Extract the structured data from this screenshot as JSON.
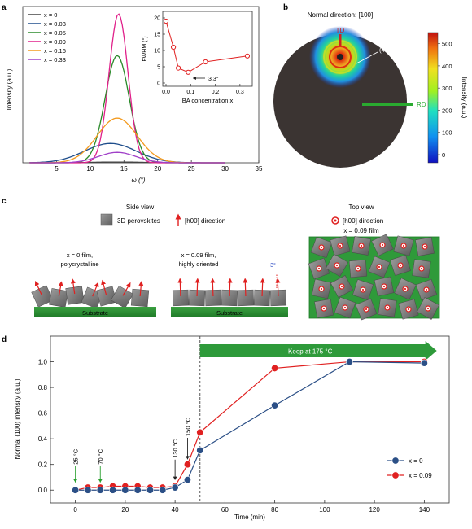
{
  "panel_labels": {
    "a": "a",
    "b": "b",
    "c": "c",
    "d": "d"
  },
  "panel_a": {
    "ylabel": "Intensity (a.u.)",
    "xlabel": "ω (°)",
    "xticks": [
      "5",
      "10",
      "15",
      "20",
      "25",
      "30",
      "35"
    ],
    "legend": [
      {
        "label": "x = 0",
        "color": "#444444"
      },
      {
        "label": "x = 0.03",
        "color": "#1f4e8c"
      },
      {
        "label": "x = 0.05",
        "color": "#2a8a2a"
      },
      {
        "label": "x = 0.09",
        "color": "#e0208a"
      },
      {
        "label": "x = 0.16",
        "color": "#f39a1e"
      },
      {
        "label": "x = 0.33",
        "color": "#a040c8"
      }
    ],
    "inset": {
      "ylabel": "FWHM (°)",
      "xlabel": "BA concentration x",
      "yticks": [
        "0",
        "5",
        "10",
        "15",
        "20"
      ],
      "xticks": [
        "0.0",
        "0.1",
        "0.2",
        "0.3"
      ],
      "annotation": "3.3°"
    }
  },
  "panel_b": {
    "title": "Normal direction: [100]",
    "td": "TD",
    "rd": "RD",
    "peak": "(410)",
    "colorbar_label": "Intensity (a.u.)",
    "colorbar_ticks": [
      "500",
      "400",
      "300",
      "200",
      "100",
      "0"
    ]
  },
  "panel_c": {
    "side_view": "Side view",
    "top_view": "Top view",
    "legend_cube": "3D perovskites",
    "legend_arrow": "[h00] direction",
    "legend_dot": "[h00] direction",
    "top_film": "x = 0.09 film",
    "film1_line1": "x = 0 film,",
    "film1_line2": "polycrystalline",
    "film2_line1": "x = 0.09 film,",
    "film2_line2": "highly oriented",
    "angle": "~3°",
    "substrate": "Substrate"
  },
  "chart_data": {
    "type": "line",
    "ylabel": "Normal (100) intensity (a.u.)",
    "xlabel": "Time (min)",
    "xlim": [
      -10,
      150
    ],
    "ylim": [
      -0.1,
      1.2
    ],
    "xticks": [
      "0",
      "20",
      "40",
      "60",
      "80",
      "100",
      "120",
      "140"
    ],
    "yticks": [
      "0.0",
      "0.2",
      "0.4",
      "0.6",
      "0.8",
      "1.0"
    ],
    "keep_label": "Keep at 175 °C",
    "temperature_labels": [
      "25 °C",
      "70 °C",
      "130 °C",
      "150 °C"
    ],
    "series": [
      {
        "name": "x = 0",
        "color": "#2b4f86",
        "x": [
          0,
          5,
          10,
          15,
          20,
          25,
          30,
          35,
          40,
          45,
          50,
          80,
          110,
          140
        ],
        "y": [
          0.0,
          0.0,
          0.0,
          0.0,
          0.0,
          0.0,
          0.0,
          0.0,
          0.02,
          0.08,
          0.31,
          0.66,
          1.0,
          0.99
        ]
      },
      {
        "name": "x = 0.09",
        "color": "#e02020",
        "x": [
          0,
          5,
          10,
          15,
          20,
          25,
          30,
          35,
          40,
          45,
          50,
          80,
          110,
          140
        ],
        "y": [
          0.0,
          0.02,
          0.02,
          0.03,
          0.03,
          0.03,
          0.02,
          0.02,
          0.03,
          0.2,
          0.45,
          0.95,
          1.0,
          1.0
        ]
      }
    ]
  }
}
